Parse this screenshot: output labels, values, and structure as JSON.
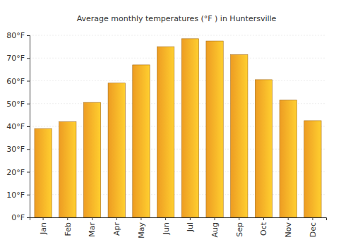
{
  "chart_data": {
    "type": "bar",
    "title": "Average monthly temperatures (°F ) in Huntersville",
    "categories": [
      "Jan",
      "Feb",
      "Mar",
      "Apr",
      "May",
      "Jun",
      "Jul",
      "Aug",
      "Sep",
      "Oct",
      "Nov",
      "Dec"
    ],
    "values": [
      39,
      42,
      50.5,
      59,
      67,
      75,
      78.5,
      77.5,
      71.5,
      60.5,
      51.5,
      42.5
    ],
    "color": "#ffa726",
    "ylim": [
      0,
      80
    ],
    "yticks": [
      {
        "value": 0,
        "label": "0°F"
      },
      {
        "value": 10,
        "label": "10°F"
      },
      {
        "value": 20,
        "label": "20°F"
      },
      {
        "value": 30,
        "label": "30°F"
      },
      {
        "value": 40,
        "label": "40°F"
      },
      {
        "value": 50,
        "label": "50°F"
      },
      {
        "value": 60,
        "label": "60°F"
      },
      {
        "value": 70,
        "label": "70°F"
      },
      {
        "value": 80,
        "label": "80°F"
      }
    ],
    "grid": true
  }
}
